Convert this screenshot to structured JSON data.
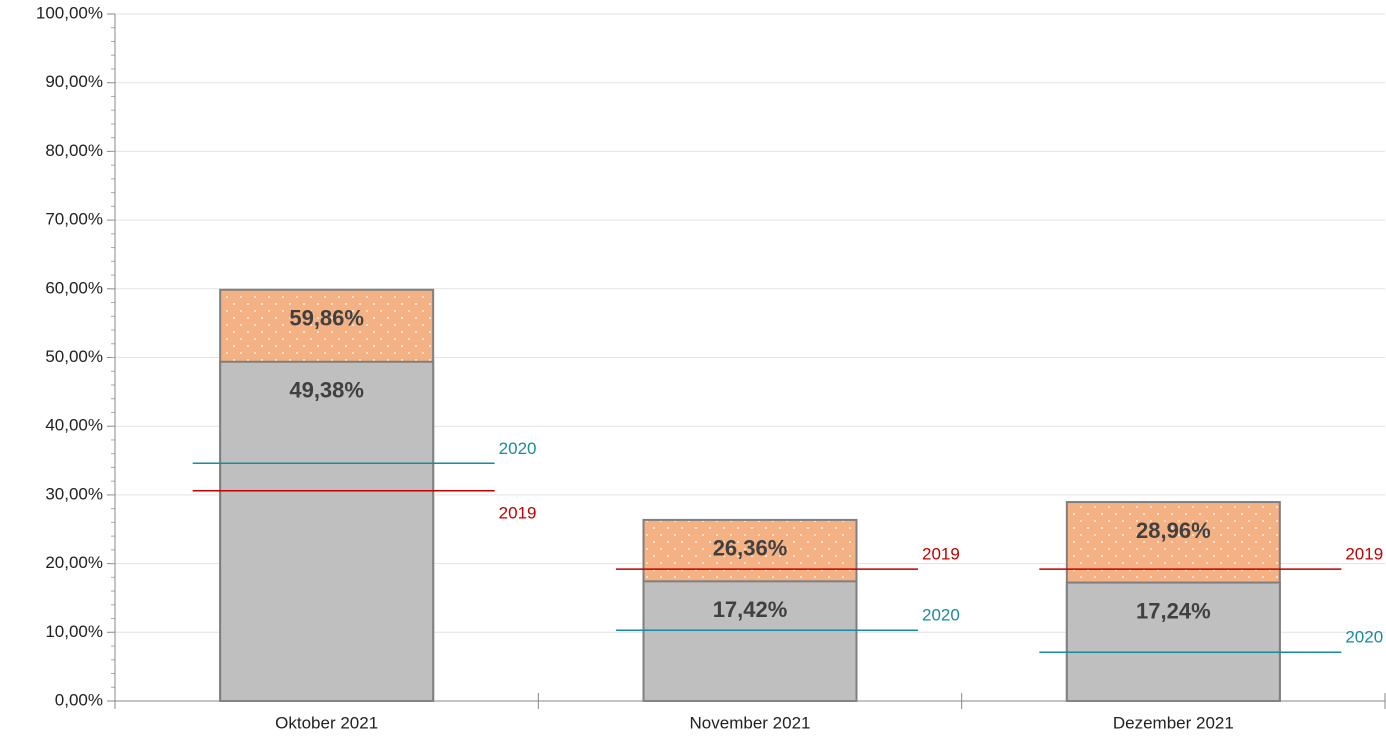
{
  "chart_data": {
    "type": "bar",
    "categories": [
      "Oktober 2021",
      "November 2021",
      "Dezember 2021"
    ],
    "series": [
      {
        "color": "#f4b183",
        "values": [
          59.86,
          26.36,
          28.96
        ],
        "value_labels": [
          "59,86%",
          "26,36%",
          "28,96%"
        ]
      },
      {
        "color": "#bfbfbf",
        "values": [
          49.38,
          17.42,
          17.24
        ],
        "value_labels": [
          "49,38%",
          "17,42%",
          "17,24%"
        ]
      }
    ],
    "lines": [
      {
        "name": "2020",
        "color": "#1a8a9e",
        "values": [
          34.6,
          10.3,
          7.1
        ]
      },
      {
        "name": "2019",
        "color": "#c00000",
        "values": [
          30.6,
          19.2,
          19.2
        ]
      }
    ],
    "ylim": [
      0,
      100
    ],
    "yticks": [
      {
        "value": 0,
        "label": "0,00%"
      },
      {
        "value": 10,
        "label": "10,00%"
      },
      {
        "value": 20,
        "label": "20,00%"
      },
      {
        "value": 30,
        "label": "30,00%"
      },
      {
        "value": 40,
        "label": "40,00%"
      },
      {
        "value": 50,
        "label": "50,00%"
      },
      {
        "value": 60,
        "label": "60,00%"
      },
      {
        "value": 70,
        "label": "70,00%"
      },
      {
        "value": 80,
        "label": "80,00%"
      },
      {
        "value": 90,
        "label": "90,00%"
      },
      {
        "value": 100,
        "label": "100,00%"
      }
    ],
    "grid": true
  }
}
